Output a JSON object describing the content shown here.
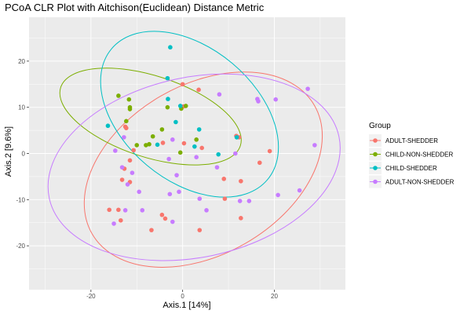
{
  "chart_data": {
    "type": "scatter",
    "title": "PCoA CLR Plot with Aitchison(Euclidean) Distance Metric",
    "xlabel": "Axis.1   [14%]",
    "ylabel": "Axis.2   [9.6%]",
    "xlim": [
      -33.5,
      35.5
    ],
    "ylim": [
      -29.5,
      29.5
    ],
    "xticks": [
      -20,
      0,
      20
    ],
    "yticks": [
      -20,
      -10,
      0,
      10,
      20
    ],
    "xtick_labels": [
      "-20",
      "0",
      "20"
    ],
    "ytick_labels": [
      "-20",
      "-10",
      "0",
      "10",
      "20"
    ],
    "grid": true,
    "panel_background": "#ebebeb",
    "legend": {
      "title": "Group",
      "position": "right"
    },
    "series": [
      {
        "name": "ADULT-SHEDDER",
        "color": "#f8766d",
        "points": [
          [
            0.0,
            15.0
          ],
          [
            3.5,
            13.8
          ],
          [
            0.2,
            10.2
          ],
          [
            -12.5,
            5.8
          ],
          [
            -12.3,
            5.5
          ],
          [
            -10.7,
            0.7
          ],
          [
            -11.5,
            -1.5
          ],
          [
            -12.7,
            -3.3
          ],
          [
            -13.2,
            -5.7
          ],
          [
            -11.5,
            -6.2
          ],
          [
            -16.0,
            -12.2
          ],
          [
            -14.0,
            -12.2
          ],
          [
            -13.5,
            -14.5
          ],
          [
            -4.5,
            -13.3
          ],
          [
            -3.8,
            -14.1
          ],
          [
            -6.8,
            -16.6
          ],
          [
            3.7,
            -16.6
          ],
          [
            11.7,
            3.8
          ],
          [
            12.3,
            3.5
          ],
          [
            0.3,
            2.2
          ],
          [
            -4.3,
            2.3
          ],
          [
            4.2,
            1.2
          ],
          [
            19.0,
            0.5
          ],
          [
            16.8,
            -2.0
          ],
          [
            9.0,
            -5.5
          ],
          [
            12.7,
            -6.0
          ],
          [
            9.2,
            -9.8
          ],
          [
            12.7,
            -14.0
          ]
        ]
      },
      {
        "name": "CHILD-NON-SHEDDER",
        "color": "#7cae00",
        "points": [
          [
            -14.0,
            12.5
          ],
          [
            -11.7,
            11.7
          ],
          [
            -11.5,
            10.0
          ],
          [
            -11.5,
            9.6
          ],
          [
            -12.3,
            7.0
          ],
          [
            -3.3,
            10.0
          ],
          [
            -0.3,
            9.7
          ],
          [
            0.7,
            10.3
          ],
          [
            -4.5,
            5.2
          ],
          [
            -6.5,
            3.7
          ],
          [
            -7.3,
            2.0
          ],
          [
            -8.0,
            1.8
          ],
          [
            -10.0,
            1.8
          ],
          [
            3.0,
            3.0
          ],
          [
            -0.5,
            0.2
          ]
        ]
      },
      {
        "name": "CHILD-SHEDDER",
        "color": "#00bfc4",
        "points": [
          [
            -2.7,
            23.0
          ],
          [
            -3.3,
            16.3
          ],
          [
            -3.2,
            11.8
          ],
          [
            -0.5,
            10.3
          ],
          [
            -16.3,
            6.0
          ],
          [
            -1.5,
            6.8
          ],
          [
            3.6,
            5.2
          ],
          [
            -5.5,
            1.9
          ],
          [
            2.6,
            1.5
          ],
          [
            7.8,
            -0.2
          ],
          [
            11.8,
            3.5
          ]
        ]
      },
      {
        "name": "ADULT-NON-SHEDDER",
        "color": "#c77cff",
        "points": [
          [
            27.3,
            14.0
          ],
          [
            20.3,
            11.7
          ],
          [
            16.5,
            11.3
          ],
          [
            8.0,
            12.8
          ],
          [
            -12.8,
            3.5
          ],
          [
            -14.7,
            0.6
          ],
          [
            -2.2,
            3.0
          ],
          [
            -3.0,
            -1.2
          ],
          [
            -1.3,
            -4.7
          ],
          [
            3.0,
            -0.8
          ],
          [
            7.5,
            -3.0
          ],
          [
            11.5,
            0.0
          ],
          [
            -13.2,
            -3.0
          ],
          [
            -11.0,
            -4.2
          ],
          [
            -0.8,
            -8.3
          ],
          [
            -2.8,
            -8.8
          ],
          [
            -12.0,
            -6.7
          ],
          [
            -9.5,
            -8.3
          ],
          [
            -8.8,
            -12.3
          ],
          [
            -15.0,
            -15.2
          ],
          [
            -12.5,
            -12.3
          ],
          [
            3.7,
            -9.8
          ],
          [
            5.2,
            -12.3
          ],
          [
            -2.2,
            -14.8
          ],
          [
            25.5,
            -8.0
          ],
          [
            20.8,
            -9.0
          ],
          [
            12.5,
            -10.3
          ],
          [
            14.5,
            -10.3
          ],
          [
            28.8,
            1.8
          ],
          [
            16.3,
            11.8
          ]
        ]
      }
    ],
    "ellipses": [
      {
        "series": "ADULT-SHEDDER",
        "color": "#f8766d",
        "cx": 4.5,
        "cy": -3.5,
        "rx": 28.0,
        "ry": 18.4,
        "angle": 30
      },
      {
        "series": "CHILD-NON-SHEDDER",
        "color": "#7cae00",
        "cx": -7.0,
        "cy": 8.0,
        "rx": 20.6,
        "ry": 8.8,
        "angle": -18
      },
      {
        "series": "CHILD-SHEDDER",
        "color": "#00bfc4",
        "cx": 1.5,
        "cy": 8.5,
        "rx": 22.2,
        "ry": 14.4,
        "angle": -40
      },
      {
        "series": "ADULT-NON-SHEDDER",
        "color": "#c77cff",
        "cx": 2.5,
        "cy": -3.0,
        "rx": 32.3,
        "ry": 19.5,
        "angle": 12
      }
    ]
  }
}
